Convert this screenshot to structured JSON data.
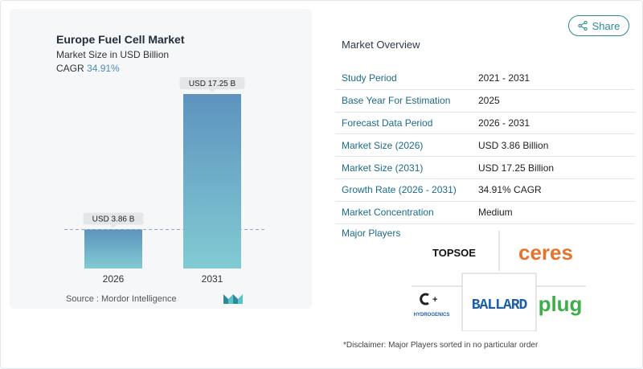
{
  "chart": {
    "title": "Europe Fuel Cell Market",
    "subtitle": "Market Size in USD Billion",
    "cagr_label": "CAGR",
    "cagr_value": "34.91%",
    "source": "Source :  Mordor Intelligence"
  },
  "chart_data": {
    "type": "bar",
    "title": "Europe Fuel Cell Market",
    "ylabel": "Market Size in USD Billion",
    "categories": [
      "2026",
      "2031"
    ],
    "values": [
      3.86,
      17.25
    ],
    "data_labels": [
      "USD 3.86 B",
      "USD 17.25 B"
    ],
    "ylim": [
      0,
      17.25
    ],
    "reference_line": 3.86,
    "bar_colors": {
      "top": "#5d93bf",
      "bottom": "#82cbd3"
    }
  },
  "share": {
    "label": "Share",
    "icon": "share-icon"
  },
  "overview": {
    "title": "Market Overview",
    "rows": [
      {
        "key": "Study Period",
        "value": "2021 - 2031"
      },
      {
        "key": "Base Year For Estimation",
        "value": "2025"
      },
      {
        "key": "Forecast Data Period",
        "value": "2026 - 2031"
      },
      {
        "key": "Market Size (2026)",
        "value": "USD 3.86 Billion"
      },
      {
        "key": "Market Size (2031)",
        "value": "USD 17.25 Billion"
      },
      {
        "key": "Growth Rate (2026 - 2031)",
        "value": "34.91% CAGR"
      },
      {
        "key": "Market Concentration",
        "value": "Medium"
      }
    ]
  },
  "players": {
    "title": "Major Players",
    "logos": [
      "TOPSOE",
      "ceres",
      "HYDROGENICS",
      "BALLARD",
      "plug"
    ]
  },
  "disclaimer": "*Disclaimer: Major Players sorted in no particular order",
  "colors": {
    "accent": "#2f8a94",
    "key_text": "#1c6b8a",
    "ballard": "#1f5fa8",
    "ceres": "#e8742a",
    "plug": "#3fae49"
  }
}
